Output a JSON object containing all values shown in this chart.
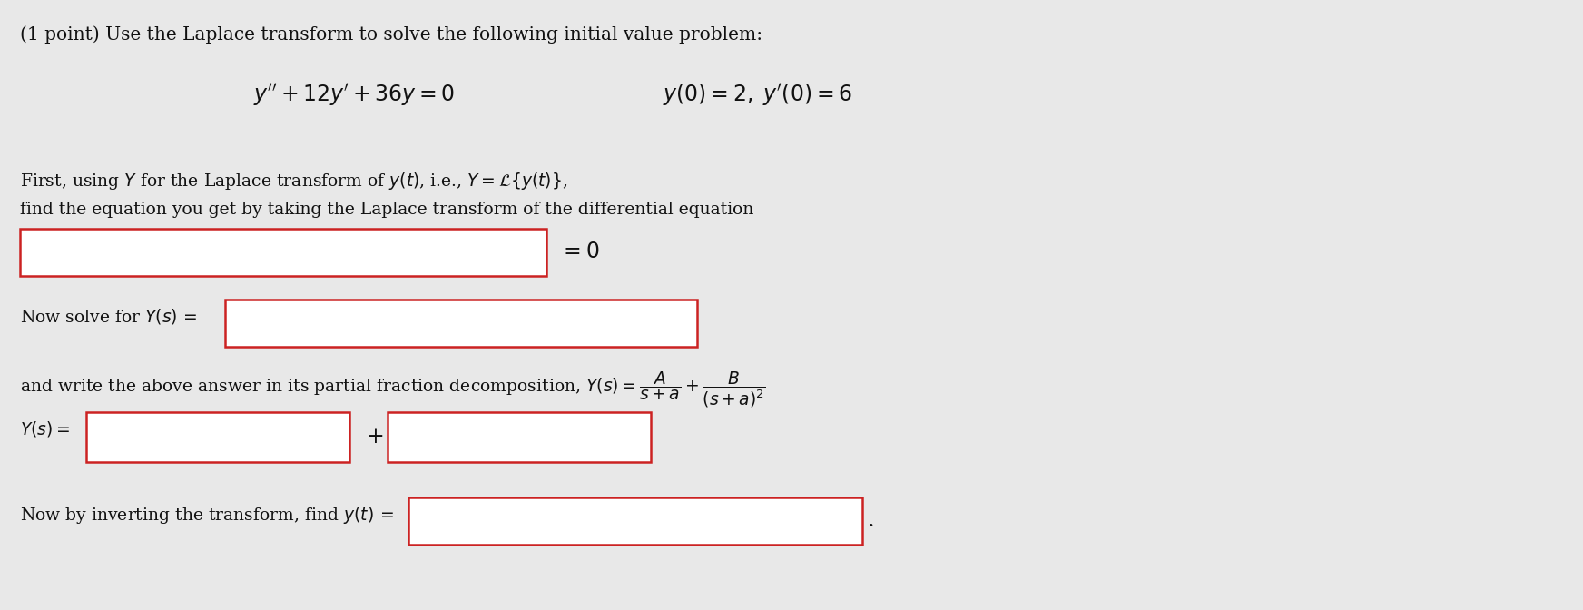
{
  "background_color": "#e8e8e8",
  "title_text": "(1 point) Use the Laplace transform to solve the following initial value problem:",
  "ode_equation": "$y'' + 12y' + 36y = 0$",
  "initial_conditions": "$y(0) = 2,\\; y'(0) = 6$",
  "para1_line1": "First, using $Y$ for the Laplace transform of $y(t)$, i.e., $Y = \\mathcal{L}\\{y(t)\\}$,",
  "para1_line2": "find the equation you get by taking the Laplace transform of the differential equation",
  "eq0_suffix": "$= 0$",
  "solve_prefix": "Now solve for $Y(s)\\, =$",
  "partial_frac_text": "and write the above answer in its partial fraction decomposition, $Y(s) = \\dfrac{A}{s+a} + \\dfrac{B}{(s+a)^2}$",
  "Ys_prefix": "$Y(s) = $",
  "plus_sign": "+",
  "invert_text": "Now by inverting the transform, find $y(t)\\, =$",
  "period": ".",
  "box_edge_color": "#cc2222",
  "box_face_color": "#ffffff",
  "text_color": "#111111",
  "font_size_title": 14.5,
  "font_size_body": 13.5,
  "font_size_eq": 17,
  "font_size_small": 13
}
